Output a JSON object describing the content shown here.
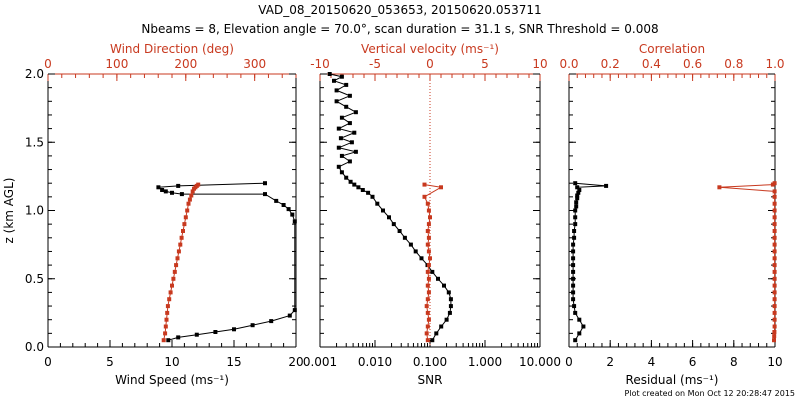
{
  "figure": {
    "title": "VAD_08_20150620_053653, 20150620.053711",
    "subtitle": "Nbeams = 8, Elevation angle = 70.0°, scan duration = 31.1 s, SNR Threshold = 0.008",
    "footer": "Plot created on Mon Oct 12 20:28:47 2015"
  },
  "colors": {
    "black": "#000000",
    "red": "#c8391f"
  },
  "chart_data": [
    {
      "type": "line",
      "name": "wind-panel",
      "xlabel": "Wind Speed (ms⁻¹)",
      "xlim": [
        0,
        20
      ],
      "xticks": [
        0,
        5,
        10,
        15,
        20
      ],
      "x2label": "Wind Direction (deg)",
      "x2lim": [
        0,
        360
      ],
      "x2ticks": [
        0,
        100,
        200,
        300
      ],
      "ylabel": "z (km AGL)",
      "ylim": [
        0,
        2.0
      ],
      "yticks": [
        0.0,
        0.5,
        1.0,
        1.5,
        2.0
      ],
      "yticklabels": [
        "0.0",
        "0.5",
        "1.0",
        "1.5",
        "2.0"
      ],
      "series": [
        {
          "axis": "bottom",
          "color": "#000000",
          "x": [
            9.7,
            10.5,
            12.0,
            13.5,
            15.0,
            16.5,
            18.0,
            19.5,
            19.9,
            19.9,
            19.7,
            19.4,
            19.0,
            18.4,
            17.5,
            10.8,
            10.0,
            9.5,
            9.2,
            8.9,
            10.5,
            17.5
          ],
          "y": [
            0.05,
            0.07,
            0.09,
            0.11,
            0.13,
            0.16,
            0.19,
            0.23,
            0.27,
            0.92,
            0.97,
            1.01,
            1.04,
            1.07,
            1.12,
            1.12,
            1.13,
            1.14,
            1.15,
            1.17,
            1.18,
            1.2
          ]
        },
        {
          "axis": "top",
          "color": "#c8391f",
          "x": [
            168,
            170,
            171,
            172,
            173,
            174,
            176,
            178,
            180,
            182,
            184,
            186,
            188,
            190,
            192,
            194,
            196,
            198,
            200,
            202,
            204,
            206,
            208,
            210,
            212,
            214,
            216,
            218
          ],
          "y": [
            0.05,
            0.1,
            0.15,
            0.2,
            0.25,
            0.3,
            0.35,
            0.4,
            0.45,
            0.5,
            0.55,
            0.6,
            0.65,
            0.7,
            0.75,
            0.8,
            0.85,
            0.9,
            0.95,
            1.0,
            1.05,
            1.08,
            1.11,
            1.14,
            1.16,
            1.17,
            1.18,
            1.19
          ]
        }
      ]
    },
    {
      "type": "line",
      "name": "snr-panel",
      "xlabel": "SNR",
      "xscale": "log",
      "xlim": [
        0.001,
        10
      ],
      "xticks": [
        0.001,
        0.01,
        0.1,
        1,
        10
      ],
      "xticklabels": [
        "0.001",
        "0.010",
        "0.100",
        "1.000",
        "10.000"
      ],
      "x2label": "Vertical velocity (ms⁻¹)",
      "x2lim": [
        -10,
        10
      ],
      "x2ticks": [
        -10,
        -5,
        0,
        5,
        10
      ],
      "zero_line": "dotted red at vertical velocity = 0",
      "ylim": [
        0,
        2.0
      ],
      "series": [
        {
          "axis": "bottom",
          "color": "#000000",
          "x": [
            0.11,
            0.13,
            0.16,
            0.2,
            0.23,
            0.24,
            0.24,
            0.22,
            0.18,
            0.14,
            0.11,
            0.09,
            0.07,
            0.055,
            0.045,
            0.035,
            0.028,
            0.022,
            0.018,
            0.014,
            0.011,
            0.009,
            0.0075,
            0.006,
            0.005,
            0.0042,
            0.0036,
            0.003,
            0.0025,
            0.0022,
            0.0035,
            0.0025,
            0.0045,
            0.0022,
            0.0038,
            0.0024,
            0.0042,
            0.0022,
            0.0035,
            0.0025,
            0.0045,
            0.003,
            0.002,
            0.0035,
            0.002,
            0.003,
            0.0018,
            0.0025,
            0.0015
          ],
          "y": [
            0.05,
            0.1,
            0.15,
            0.2,
            0.25,
            0.3,
            0.35,
            0.4,
            0.45,
            0.5,
            0.55,
            0.6,
            0.65,
            0.7,
            0.75,
            0.8,
            0.85,
            0.9,
            0.95,
            1.0,
            1.05,
            1.1,
            1.13,
            1.15,
            1.17,
            1.19,
            1.21,
            1.24,
            1.28,
            1.32,
            1.36,
            1.4,
            1.43,
            1.46,
            1.5,
            1.53,
            1.57,
            1.6,
            1.64,
            1.68,
            1.72,
            1.76,
            1.8,
            1.84,
            1.88,
            1.92,
            1.95,
            1.98,
            2.0
          ]
        },
        {
          "axis": "top",
          "color": "#c8391f",
          "x": [
            -0.2,
            -0.3,
            -0.2,
            -0.1,
            -0.2,
            -0.3,
            -0.2,
            -0.1,
            -0.2,
            -0.1,
            -0.2,
            -0.1,
            0.0,
            -0.1,
            -0.2,
            -0.1,
            -0.2,
            -0.1,
            0.0,
            -0.1,
            -0.2,
            -0.5,
            1.0,
            -0.5
          ],
          "y": [
            0.05,
            0.1,
            0.15,
            0.2,
            0.25,
            0.3,
            0.35,
            0.4,
            0.45,
            0.5,
            0.55,
            0.6,
            0.65,
            0.7,
            0.75,
            0.8,
            0.85,
            0.9,
            0.95,
            1.0,
            1.05,
            1.1,
            1.17,
            1.19
          ]
        }
      ]
    },
    {
      "type": "line",
      "name": "residual-panel",
      "xlabel": "Residual (ms⁻¹)",
      "xlim": [
        0,
        10
      ],
      "xticks": [
        0,
        2,
        4,
        6,
        8,
        10
      ],
      "x2label": "Correlation",
      "x2lim": [
        0,
        1.0
      ],
      "x2ticks": [
        0.0,
        0.2,
        0.4,
        0.6,
        0.8,
        1.0
      ],
      "x2ticklabels": [
        "0.0",
        "0.2",
        "0.4",
        "0.6",
        "0.8",
        "1.0"
      ],
      "ylim": [
        0,
        2.0
      ],
      "series": [
        {
          "axis": "bottom",
          "color": "#000000",
          "x": [
            0.3,
            0.5,
            0.7,
            0.5,
            0.3,
            0.25,
            0.2,
            0.2,
            0.2,
            0.2,
            0.2,
            0.2,
            0.2,
            0.2,
            0.2,
            0.25,
            0.25,
            0.3,
            0.3,
            0.3,
            0.35,
            0.35,
            0.4,
            0.4,
            0.45,
            0.5,
            0.4,
            1.8,
            0.3
          ],
          "y": [
            0.05,
            0.1,
            0.15,
            0.2,
            0.25,
            0.3,
            0.35,
            0.4,
            0.45,
            0.5,
            0.55,
            0.6,
            0.65,
            0.7,
            0.75,
            0.8,
            0.85,
            0.9,
            0.95,
            1.0,
            1.03,
            1.06,
            1.09,
            1.11,
            1.13,
            1.15,
            1.17,
            1.18,
            1.2
          ]
        },
        {
          "axis": "top",
          "color": "#c8391f",
          "x": [
            0.995,
            0.996,
            0.997,
            0.998,
            0.998,
            0.998,
            0.998,
            0.998,
            0.998,
            0.998,
            0.998,
            0.998,
            0.998,
            0.998,
            0.998,
            0.998,
            0.998,
            0.998,
            0.998,
            0.998,
            0.998,
            0.998,
            0.998,
            0.998,
            0.73,
            0.99,
            0.998
          ],
          "y": [
            0.05,
            0.08,
            0.11,
            0.15,
            0.2,
            0.25,
            0.3,
            0.35,
            0.4,
            0.45,
            0.5,
            0.55,
            0.6,
            0.65,
            0.7,
            0.75,
            0.8,
            0.85,
            0.9,
            0.95,
            1.0,
            1.05,
            1.1,
            1.14,
            1.17,
            1.19,
            1.2
          ]
        }
      ]
    }
  ]
}
